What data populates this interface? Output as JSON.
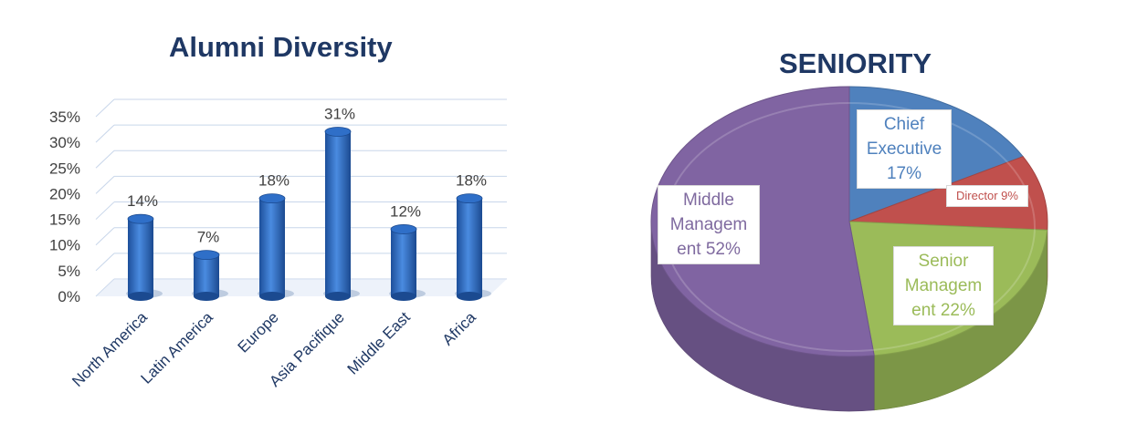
{
  "charts": {
    "bar": {
      "title": "Alumni Diversity",
      "chart_data": {
        "type": "bar",
        "title": "Alumni Diversity",
        "categories": [
          "North America",
          "Latin America",
          "Europe",
          "Asia Pacifique",
          "Middle East",
          "Africa"
        ],
        "values": [
          14,
          7,
          18,
          31,
          12,
          18
        ],
        "value_labels": [
          "14%",
          "7%",
          "18%",
          "31%",
          "12%",
          "18%"
        ],
        "ylim": [
          0,
          35
        ],
        "yticks": [
          "0%",
          "5%",
          "10%",
          "15%",
          "20%",
          "25%",
          "30%",
          "35%"
        ],
        "grid": true,
        "bar_color": "#2E6CC0"
      }
    },
    "pie": {
      "title": "SENIORITY",
      "chart_data": {
        "type": "pie",
        "title": "SENIORITY",
        "slices": [
          {
            "name": "Chief Executive",
            "value": 17,
            "label_lines": [
              "Chief",
              "Executive",
              "17%"
            ],
            "color": "#4F81BD",
            "text_color": "#4F81BD"
          },
          {
            "name": "Director",
            "value": 9,
            "label_lines": [
              "Director 9%"
            ],
            "color": "#C0504D",
            "text_color": "#C0504D"
          },
          {
            "name": "Senior Management",
            "value": 22,
            "label_lines": [
              "Senior",
              "Managem",
              "ent 22%"
            ],
            "color": "#9BBB59",
            "text_color": "#9BBB59"
          },
          {
            "name": "Middle Management",
            "value": 52,
            "label_lines": [
              "Middle",
              "Managem",
              "ent 52%"
            ],
            "color": "#8064A2",
            "text_color": "#7F6A9F"
          }
        ]
      }
    }
  }
}
